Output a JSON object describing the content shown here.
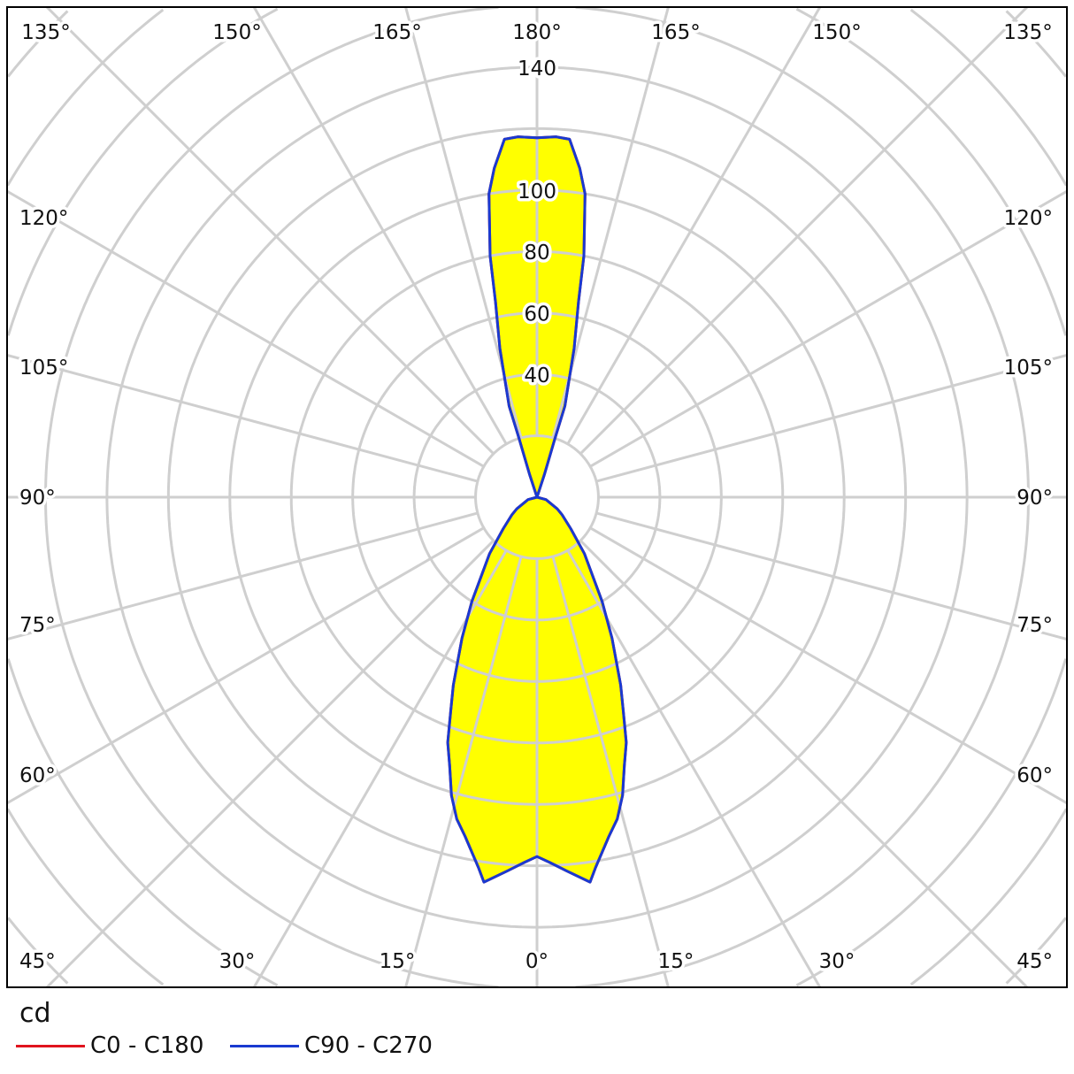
{
  "chart_data": {
    "type": "polar",
    "unit_label": "cd",
    "radial_ticks": [
      20,
      40,
      60,
      80,
      100,
      120,
      140,
      160,
      180,
      200,
      220
    ],
    "radial_tick_labels": [
      "40",
      "60",
      "80",
      "100",
      "140"
    ],
    "angle_labels": {
      "top": [
        "135°",
        "150°",
        "165°",
        "180°",
        "165°",
        "150°",
        "135°"
      ],
      "left": [
        "120°",
        "105°",
        "90°",
        "75°",
        "60°",
        "45°"
      ],
      "right": [
        "120°",
        "105°",
        "90°",
        "75°",
        "60°",
        "45°"
      ],
      "bottom": [
        "30°",
        "15°",
        "0°",
        "15°",
        "30°"
      ]
    },
    "angle_step_deg": 15,
    "grid": true,
    "legend_placement": "bottom-left",
    "fill_color": "#ffff00",
    "series": [
      {
        "name": "C0 - C180",
        "color": "#e0141e",
        "gamma_deg": [
          0,
          2,
          4.5,
          7.85,
          9,
          12,
          14,
          16,
          18,
          20,
          22,
          24,
          28,
          32,
          40,
          47,
          55,
          60,
          75,
          90,
          160,
          162,
          163,
          163,
          166,
          168,
          169,
          171,
          172.6,
          174.8,
          177,
          180
        ],
        "cd": [
          117,
          119,
          122,
          126.5,
          122,
          112.8,
          108,
          101,
          92,
          85,
          75,
          67,
          52,
          40,
          24,
          15,
          10,
          7.6,
          3,
          0,
          0,
          8,
          20,
          31,
          50,
          65,
          80,
          100,
          108,
          117,
          117.5,
          117
        ]
      },
      {
        "name": "C90 - C270",
        "color": "#1a3ad0",
        "gamma_deg": [
          0,
          2,
          4.5,
          7.85,
          9,
          12,
          14,
          16,
          18,
          20,
          22,
          24,
          28,
          32,
          40,
          47,
          55,
          60,
          75,
          90,
          160,
          162,
          163,
          163,
          166,
          168,
          169,
          171,
          172.6,
          174.8,
          177,
          180
        ],
        "cd": [
          117,
          119,
          122,
          126.5,
          122,
          112.8,
          108,
          101,
          92,
          85,
          75,
          67,
          52,
          40,
          24,
          15,
          10,
          7.6,
          3,
          0,
          0,
          8,
          20,
          31,
          50,
          65,
          80,
          100,
          108,
          117,
          117.5,
          117
        ]
      }
    ]
  }
}
